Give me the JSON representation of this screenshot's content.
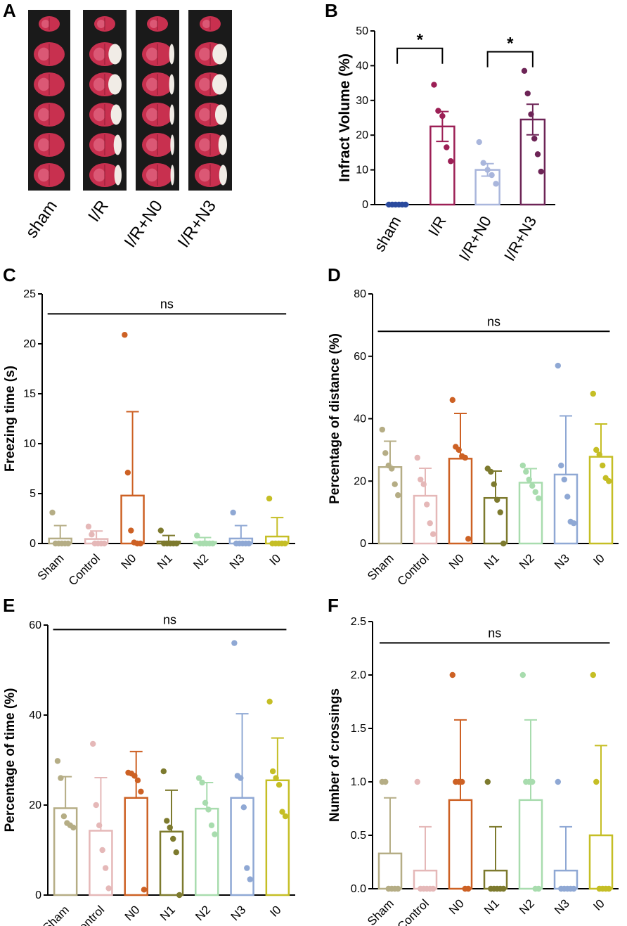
{
  "panels": {
    "A": {
      "label": "A",
      "groups": [
        "sham",
        "I/R",
        "I/R+N0",
        "I/R+N3"
      ],
      "slices_per_group": 6,
      "infarct_fraction": [
        0,
        0.35,
        0.08,
        0.4
      ]
    },
    "B": {
      "label": "B"
    },
    "C": {
      "label": "C"
    },
    "D": {
      "label": "D"
    },
    "E": {
      "label": "E"
    },
    "F": {
      "label": "F"
    }
  },
  "chart_data": [
    {
      "id": "B",
      "type": "bar",
      "title": "",
      "ylabel": "Infract Volume (%)",
      "ylim": [
        0,
        50
      ],
      "yticks": [
        0,
        10,
        20,
        30,
        40,
        50
      ],
      "categories": [
        "sham",
        "I/R",
        "I/R+N0",
        "I/R+N3"
      ],
      "means": [
        0,
        22.5,
        10,
        24.5
      ],
      "sem": [
        0,
        4.3,
        1.8,
        4.4
      ],
      "points": [
        [
          0,
          0,
          0,
          0,
          0,
          0
        ],
        [
          34.5,
          27,
          25.5,
          16.5,
          12.5
        ],
        [
          18,
          12,
          10,
          8.5,
          6
        ],
        [
          38.5,
          32,
          26,
          19,
          14.5,
          9.5
        ]
      ],
      "colors": [
        "#2a4a9e",
        "#9c1f55",
        "#a9b6dc",
        "#6d2456"
      ],
      "comparisons": [
        {
          "from": 0,
          "to": 1,
          "y": 45,
          "label": "*"
        },
        {
          "from": 2,
          "to": 3,
          "y": 44,
          "label": "*"
        }
      ]
    },
    {
      "id": "C",
      "type": "bar",
      "title": "",
      "ylabel": "Freezing time (s)",
      "ylim": [
        0,
        25
      ],
      "yticks": [
        0,
        5,
        10,
        15,
        20,
        25
      ],
      "categories": [
        "Sham",
        "Control",
        "N0",
        "N1",
        "N2",
        "N3",
        "I0"
      ],
      "means": [
        0.5,
        0.45,
        4.8,
        0.2,
        0.15,
        0.5,
        0.7
      ],
      "sd": [
        1.3,
        0.8,
        8.4,
        0.6,
        0.45,
        1.3,
        1.9
      ],
      "points": [
        [
          3.1,
          0,
          0,
          0,
          0,
          0
        ],
        [
          1.7,
          0.9,
          0,
          0,
          0,
          0
        ],
        [
          20.9,
          7.1,
          1.3,
          0.1,
          0,
          0
        ],
        [
          1.3,
          0,
          0,
          0,
          0,
          0
        ],
        [
          0.8,
          0,
          0,
          0,
          0,
          0
        ],
        [
          3.1,
          0,
          0,
          0,
          0,
          0
        ],
        [
          4.5,
          0,
          0,
          0,
          0,
          0
        ]
      ],
      "colors": [
        "#b5ad85",
        "#e5b8b8",
        "#cd6124",
        "#7d7a2e",
        "#a8dcae",
        "#8fa8d4",
        "#c5be25"
      ],
      "comparisons": [
        {
          "from": 0,
          "to": 6,
          "y": 23,
          "label": "ns"
        }
      ]
    },
    {
      "id": "D",
      "type": "bar",
      "title": "",
      "ylabel": "Percentage of distance (%)",
      "ylim": [
        0,
        80
      ],
      "yticks": [
        0,
        20,
        40,
        60,
        80
      ],
      "categories": [
        "Sham",
        "Control",
        "N0",
        "N1",
        "N2",
        "N3",
        "I0"
      ],
      "means": [
        24.5,
        15.3,
        27.2,
        14.6,
        19.5,
        22.1,
        27.8
      ],
      "sd": [
        8.3,
        8.8,
        14.5,
        8.6,
        4.5,
        18.8,
        10.5
      ],
      "points": [
        [
          36.5,
          29,
          25,
          24,
          19,
          15.5
        ],
        [
          27.5,
          20.5,
          19,
          12.5,
          6.5,
          3
        ],
        [
          46,
          31,
          30,
          28,
          27.5,
          1.5
        ],
        [
          24,
          23,
          19,
          14,
          10,
          0
        ],
        [
          25,
          23,
          20.5,
          18.5,
          16.5,
          14.5
        ],
        [
          57,
          25,
          20.5,
          15,
          7,
          6.5
        ],
        [
          48,
          30,
          28.5,
          25,
          21,
          20
        ]
      ],
      "colors": [
        "#b5ad85",
        "#e5b8b8",
        "#cd6124",
        "#7d7a2e",
        "#a8dcae",
        "#8fa8d4",
        "#c5be25"
      ],
      "comparisons": [
        {
          "from": 0,
          "to": 6,
          "y": 68,
          "label": "ns"
        }
      ]
    },
    {
      "id": "E",
      "type": "bar",
      "title": "",
      "ylabel": "Percentage of time (%)",
      "ylim": [
        0,
        60
      ],
      "yticks": [
        0,
        20,
        40,
        60
      ],
      "categories": [
        "Sham",
        "Control",
        "N0",
        "N1",
        "N2",
        "N3",
        "I0"
      ],
      "means": [
        19.3,
        14.3,
        21.6,
        14.1,
        19.2,
        21.6,
        25.5
      ],
      "sd": [
        7,
        11.8,
        10.3,
        9.2,
        5.8,
        18.7,
        9.4
      ],
      "points": [
        [
          29.8,
          26,
          17.5,
          16,
          15.5,
          15
        ],
        [
          33.6,
          20,
          15.5,
          10,
          6,
          1.5
        ],
        [
          27.2,
          27,
          26.5,
          25.5,
          23,
          1.2
        ],
        [
          27.5,
          16.5,
          15,
          12.5,
          9.5,
          0
        ],
        [
          26,
          25,
          20.5,
          19,
          15.5,
          13.5
        ],
        [
          56,
          26.5,
          26,
          19.5,
          6,
          3.5
        ],
        [
          43,
          27.5,
          26,
          24.5,
          18.5,
          17.5
        ]
      ],
      "colors": [
        "#b5ad85",
        "#e5b8b8",
        "#cd6124",
        "#7d7a2e",
        "#a8dcae",
        "#8fa8d4",
        "#c5be25"
      ],
      "comparisons": [
        {
          "from": 0,
          "to": 6,
          "y": 59,
          "label": "ns"
        }
      ]
    },
    {
      "id": "F",
      "type": "bar",
      "title": "",
      "ylabel": "Number of crossings",
      "ylim": [
        0,
        2.5
      ],
      "yticks": [
        "0.0",
        "0.5",
        "1.0",
        "1.5",
        "2.0",
        "2.5"
      ],
      "categories": [
        "Sham",
        "Control",
        "N0",
        "N1",
        "N2",
        "N3",
        "I0"
      ],
      "means": [
        0.33,
        0.17,
        0.83,
        0.17,
        0.83,
        0.17,
        0.5
      ],
      "sd": [
        0.52,
        0.41,
        0.75,
        0.41,
        0.75,
        0.41,
        0.84
      ],
      "points": [
        [
          1,
          1,
          0,
          0,
          0,
          0
        ],
        [
          1,
          0,
          0,
          0,
          0,
          0
        ],
        [
          2,
          1,
          1,
          1,
          0,
          0
        ],
        [
          1,
          0,
          0,
          0,
          0,
          0
        ],
        [
          2,
          1,
          1,
          1,
          0,
          0
        ],
        [
          1,
          0,
          0,
          0,
          0,
          0
        ],
        [
          2,
          1,
          0,
          0,
          0,
          0
        ]
      ],
      "colors": [
        "#b5ad85",
        "#e5b8b8",
        "#cd6124",
        "#7d7a2e",
        "#a8dcae",
        "#8fa8d4",
        "#c5be25"
      ],
      "comparisons": [
        {
          "from": 0,
          "to": 6,
          "y": 2.3,
          "label": "ns"
        }
      ]
    }
  ]
}
